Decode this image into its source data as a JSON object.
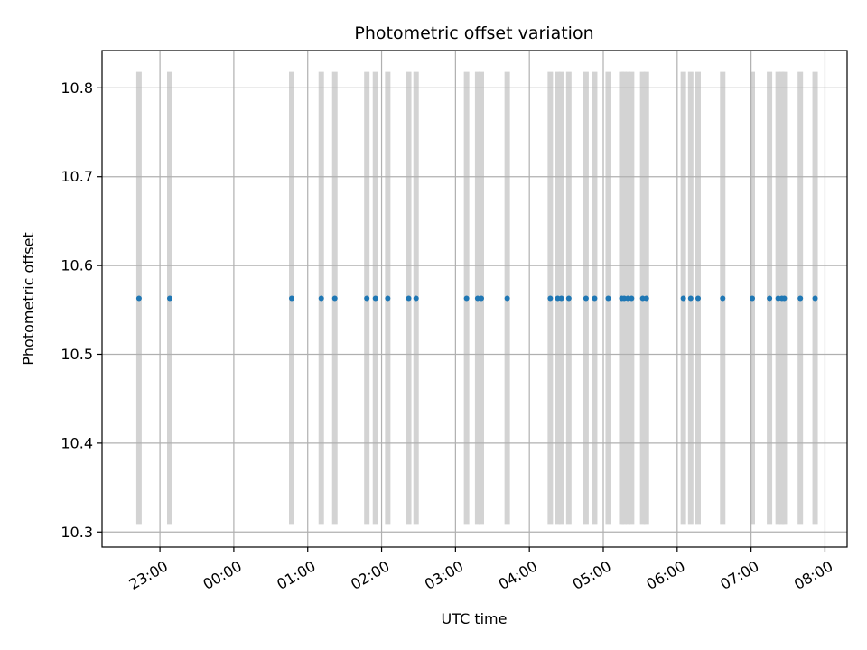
{
  "chart_data": {
    "type": "scatter",
    "title": "Photometric offset variation",
    "xlabel": "UTC time",
    "ylabel": "Photometric offset",
    "x_ticks": [
      "23:00",
      "00:00",
      "01:00",
      "02:00",
      "03:00",
      "04:00",
      "05:00",
      "06:00",
      "07:00",
      "08:00"
    ],
    "y_ticks": [
      "10.3",
      "10.4",
      "10.5",
      "10.6",
      "10.7",
      "10.8"
    ],
    "xlim": [
      "22:13",
      "08:18"
    ],
    "ylim": [
      10.283,
      10.842
    ],
    "grid": true,
    "colors": {
      "points": "#1f77b4",
      "bands": "#d3d3d3",
      "grid": "#b0b0b0"
    },
    "band_range": [
      10.309,
      10.818
    ],
    "points_y": 10.563,
    "x": [
      "22:43",
      "23:08",
      "00:47",
      "01:11",
      "01:22",
      "01:48",
      "01:55",
      "02:05",
      "02:22",
      "02:28",
      "03:09",
      "03:18",
      "03:21",
      "03:42",
      "04:17",
      "04:23",
      "04:26",
      "04:32",
      "04:46",
      "04:53",
      "05:04",
      "05:15",
      "05:17",
      "05:20",
      "05:23",
      "05:32",
      "05:35",
      "06:05",
      "06:11",
      "06:17",
      "06:37",
      "07:01",
      "07:15",
      "07:22",
      "07:25",
      "07:27",
      "07:40",
      "07:52"
    ]
  }
}
